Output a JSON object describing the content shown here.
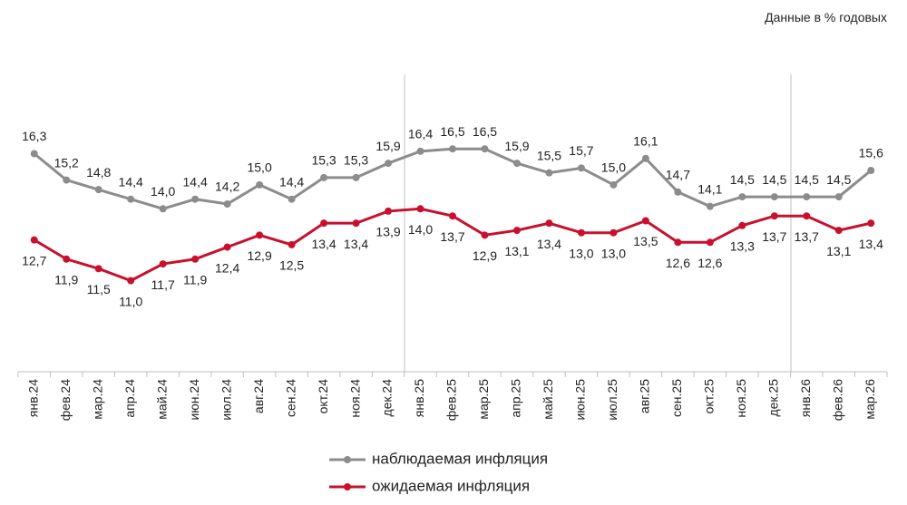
{
  "chart_data": {
    "type": "line",
    "subtitle": "Данные в % годовых",
    "categories": [
      "янв.24",
      "фев.24",
      "мар.24",
      "апр.24",
      "май.24",
      "июн.24",
      "июл.24",
      "авг.24",
      "сен.24",
      "окт.24",
      "ноя.24",
      "дек.24",
      "янв.25",
      "фев.25",
      "мар.25",
      "апр.25",
      "май.25",
      "июн.25",
      "июл.25",
      "авг.25",
      "сен.25",
      "окт.25",
      "ноя.25",
      "дек.25",
      "янв.26",
      "фев.26",
      "мар.26"
    ],
    "series": [
      {
        "name": "наблюдаемая инфляция",
        "color": "#8c8c8c",
        "values": [
          16.3,
          15.2,
          14.8,
          14.4,
          14.0,
          14.4,
          14.2,
          15.0,
          14.4,
          15.3,
          15.3,
          15.9,
          16.4,
          16.5,
          16.5,
          15.9,
          15.5,
          15.7,
          15.0,
          16.1,
          14.7,
          14.1,
          14.5,
          14.5,
          14.5,
          14.5,
          15.6
        ],
        "value_labels": [
          "16,3",
          "15,2",
          "14,8",
          "14,4",
          "14,0",
          "14,4",
          "14,2",
          "15,0",
          "14,4",
          "15,3",
          "15,3",
          "15,9",
          "16,4",
          "16,5",
          "16,5",
          "15,9",
          "15,5",
          "15,7",
          "15,0",
          "16,1",
          "14,7",
          "14,1",
          "14,5",
          "14,5",
          "14,5",
          "14,5",
          "15,6"
        ]
      },
      {
        "name": "ожидаемая инфляция",
        "color": "#c8102e",
        "values": [
          12.7,
          11.9,
          11.5,
          11.0,
          11.7,
          11.9,
          12.4,
          12.9,
          12.5,
          13.4,
          13.4,
          13.9,
          14.0,
          13.7,
          12.9,
          13.1,
          13.4,
          13.0,
          13.0,
          13.5,
          12.6,
          12.6,
          13.3,
          13.7,
          13.7,
          13.1,
          13.4
        ],
        "value_labels": [
          "12,7",
          "11,9",
          "11,5",
          "11,0",
          "11,7",
          "11,9",
          "12,4",
          "12,9",
          "12,5",
          "13,4",
          "13,4",
          "13,9",
          "14,0",
          "13,7",
          "12,9",
          "13,1",
          "13,4",
          "13,0",
          "13,0",
          "13,5",
          "12,6",
          "12,6",
          "13,3",
          "13,7",
          "13,7",
          "13,1",
          "13,4"
        ]
      }
    ],
    "ylim": [
      7.2,
      21.2
    ],
    "legend": "bottom"
  }
}
